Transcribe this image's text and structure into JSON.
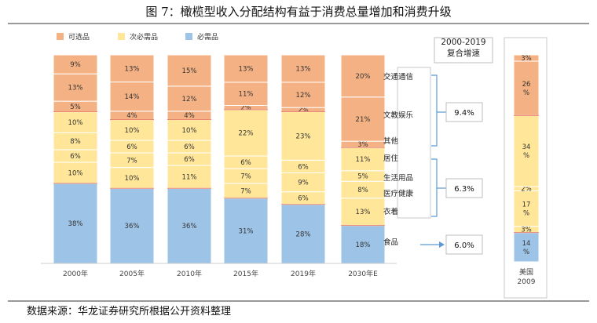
{
  "figure": {
    "title": "图 7：橄榄型收入分配结构有益于消费总量增加和消费升级",
    "source": "数据来源：华龙证券研究所根据公开资料整理"
  },
  "colors": {
    "optional": "#F4B183",
    "secondary": "#FFE699",
    "essential": "#9DC3E6",
    "divider_red": "#E8867A"
  },
  "chart_data": [
    {
      "type": "bar",
      "stacked": true,
      "normalized_100": true,
      "categories": [
        "2000年",
        "2005年",
        "2010年",
        "2015年",
        "2019年",
        "2030年E"
      ],
      "legend": [
        "可选品",
        "次必需品",
        "必需品"
      ],
      "legend_position": "top-left",
      "stack_order_bottom_to_top": "each category's segments list",
      "columns": [
        {
          "label": "2000年",
          "segments": [
            {
              "group": "必需品",
              "value": 38
            },
            {
              "group": "次必需品",
              "value": 10
            },
            {
              "group": "次必需品",
              "value": 6
            },
            {
              "group": "次必需品",
              "value": 8
            },
            {
              "group": "次必需品",
              "value": 10
            },
            {
              "group": "可选品",
              "value": 5
            },
            {
              "group": "可选品",
              "value": 13
            },
            {
              "group": "可选品",
              "value": 9
            }
          ]
        },
        {
          "label": "2005年",
          "segments": [
            {
              "group": "必需品",
              "value": 36
            },
            {
              "group": "次必需品",
              "value": 10
            },
            {
              "group": "次必需品",
              "value": 7
            },
            {
              "group": "次必需品",
              "value": 6
            },
            {
              "group": "次必需品",
              "value": 10
            },
            {
              "group": "可选品",
              "value": 4
            },
            {
              "group": "可选品",
              "value": 14
            },
            {
              "group": "可选品",
              "value": 13
            }
          ]
        },
        {
          "label": "2010年",
          "segments": [
            {
              "group": "必需品",
              "value": 36
            },
            {
              "group": "次必需品",
              "value": 11
            },
            {
              "group": "次必需品",
              "value": 6
            },
            {
              "group": "次必需品",
              "value": 6
            },
            {
              "group": "次必需品",
              "value": 10
            },
            {
              "group": "可选品",
              "value": 4
            },
            {
              "group": "可选品",
              "value": 12
            },
            {
              "group": "可选品",
              "value": 15
            }
          ]
        },
        {
          "label": "2015年",
          "segments": [
            {
              "group": "必需品",
              "value": 31
            },
            {
              "group": "次必需品",
              "value": 7
            },
            {
              "group": "次必需品",
              "value": 7
            },
            {
              "group": "次必需品",
              "value": 6
            },
            {
              "group": "次必需品",
              "value": 22
            },
            {
              "group": "可选品",
              "value": 2
            },
            {
              "group": "可选品",
              "value": 11
            },
            {
              "group": "可选品",
              "value": 13
            }
          ]
        },
        {
          "label": "2019年",
          "segments": [
            {
              "group": "必需品",
              "value": 28
            },
            {
              "group": "次必需品",
              "value": 6
            },
            {
              "group": "次必需品",
              "value": 9
            },
            {
              "group": "次必需品",
              "value": 6
            },
            {
              "group": "次必需品",
              "value": 23
            },
            {
              "group": "可选品",
              "value": 2
            },
            {
              "group": "可选品",
              "value": 12
            },
            {
              "group": "可选品",
              "value": 13
            }
          ]
        },
        {
          "label": "2030年E",
          "segments": [
            {
              "group": "必需品",
              "value": 18
            },
            {
              "group": "次必需品",
              "value": 13
            },
            {
              "group": "次必需品",
              "value": 8
            },
            {
              "group": "次必需品",
              "value": 5
            },
            {
              "group": "次必需品",
              "value": 11
            },
            {
              "group": "可选品",
              "value": 3
            },
            {
              "group": "可选品",
              "value": 21
            },
            {
              "group": "可选品",
              "value": 20
            }
          ]
        }
      ],
      "category_annotations": {
        "labels": [
          "交通通信",
          "文教娱乐",
          "其他",
          "居住",
          "生活用品",
          "医疗健康",
          "衣着",
          "食品"
        ],
        "growth_header": "2000-2019\n复合增速",
        "growth_groups": [
          {
            "members": [
              "交通通信",
              "文教娱乐",
              "其他"
            ],
            "rate": "9.4%"
          },
          {
            "members": [
              "居住",
              "生活用品",
              "医疗健康",
              "衣着"
            ],
            "rate": "6.3%"
          },
          {
            "members": [
              "食品"
            ],
            "rate": "6.0%"
          }
        ]
      }
    },
    {
      "type": "bar",
      "stacked": true,
      "categories": [
        "美国\n2009"
      ],
      "segments_bottom_to_top": [
        {
          "group": "必需品",
          "label": "14\n%",
          "value": 14
        },
        {
          "group": "次必需品",
          "label": "3%",
          "value": 3
        },
        {
          "group": "次必需品",
          "label": "17\n%",
          "value": 17
        },
        {
          "group": "次必需品",
          "label": "2%",
          "value": 2
        },
        {
          "group": "次必需品",
          "label": "34\n%",
          "value": 34
        },
        {
          "group": "可选品",
          "label": "26\n%",
          "value": 26
        },
        {
          "group": "可选品",
          "label": "3%",
          "value": 3
        }
      ]
    }
  ]
}
